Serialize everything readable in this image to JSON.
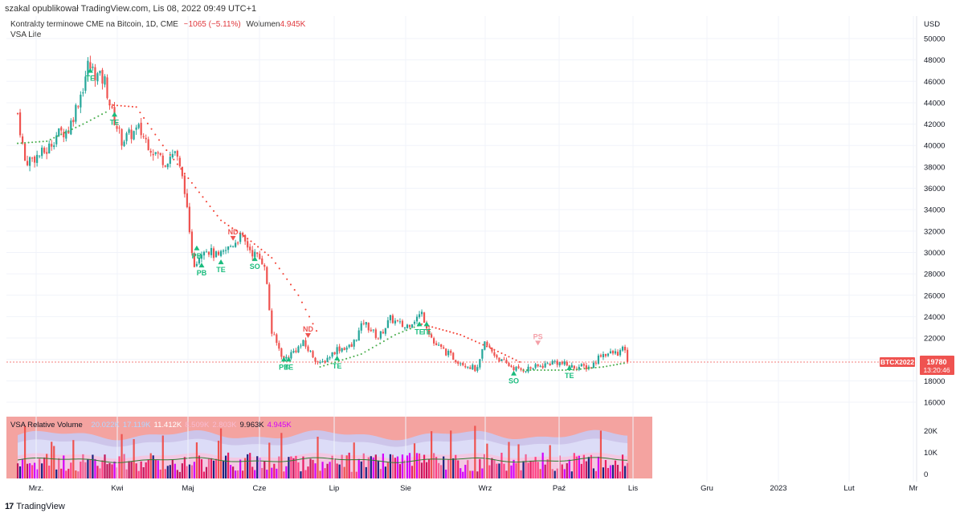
{
  "header": {
    "published": "szakal opublikował TradingView.com, Lis 08, 2022 09:49 UTC+1",
    "symbol_desc": "Kontrakty terminowe CME na Bitcoin, 1D, CME",
    "change": "−1065 (−5.11%)",
    "volume_label": "Wolumen",
    "volume_value": "4.945K",
    "indicator": "VSA Lite"
  },
  "price_axis": {
    "currency": "USD"
  },
  "price_badge": {
    "symbol": "BTCX2022",
    "price": "19780",
    "countdown": "13:20:46"
  },
  "vsa": {
    "title": "VSA Relative Volume",
    "values": [
      {
        "text": "20.022K",
        "color": "#b3d6ff"
      },
      {
        "text": "17.119K",
        "color": "#b3d6ff"
      },
      {
        "text": "11.412K",
        "color": "#ffffff"
      },
      {
        "text": "8.509K",
        "color": "#f8bbd0"
      },
      {
        "text": "2.803K",
        "color": "#f8bbd0"
      },
      {
        "text": "9.963K",
        "color": "#131722"
      },
      {
        "text": "4.945K",
        "color": "#d500f9"
      }
    ]
  },
  "footer": {
    "logo": "17",
    "brand": "TradingView"
  },
  "colors": {
    "up": "#26a69a",
    "down": "#ef5350",
    "support": "#4caf50",
    "resistance": "#f44336"
  },
  "chart_data": {
    "type": "candlestick",
    "y_ticks": [
      16000,
      18000,
      20000,
      22000,
      24000,
      26000,
      28000,
      30000,
      32000,
      34000,
      36000,
      38000,
      40000,
      42000,
      44000,
      46000,
      48000,
      50000
    ],
    "ylim": [
      15000,
      51000
    ],
    "x_labels": [
      "Mrz.",
      "Kwi",
      "Maj",
      "Cze",
      "Lip",
      "Sie",
      "Wrz",
      "Paź",
      "Lis",
      "Gru",
      "2023",
      "Lut",
      "Mr"
    ],
    "last_price": 19780,
    "close_path": [
      {
        "d": "2022-02-28",
        "v": 43000
      },
      {
        "d": "2022-03-03",
        "v": 38500
      },
      {
        "d": "2022-03-08",
        "v": 39000
      },
      {
        "d": "2022-03-12",
        "v": 39500
      },
      {
        "d": "2022-03-16",
        "v": 41000
      },
      {
        "d": "2022-03-21",
        "v": 41500
      },
      {
        "d": "2022-03-27",
        "v": 45500
      },
      {
        "d": "2022-03-29",
        "v": 47500
      },
      {
        "d": "2022-04-02",
        "v": 46500
      },
      {
        "d": "2022-04-05",
        "v": 46000
      },
      {
        "d": "2022-04-08",
        "v": 43000
      },
      {
        "d": "2022-04-12",
        "v": 40500
      },
      {
        "d": "2022-04-19",
        "v": 41500
      },
      {
        "d": "2022-04-25",
        "v": 39500
      },
      {
        "d": "2022-04-30",
        "v": 38500
      },
      {
        "d": "2022-05-04",
        "v": 39500
      },
      {
        "d": "2022-05-08",
        "v": 36000
      },
      {
        "d": "2022-05-10",
        "v": 31500
      },
      {
        "d": "2022-05-12",
        "v": 29000
      },
      {
        "d": "2022-05-16",
        "v": 30500
      },
      {
        "d": "2022-05-22",
        "v": 29500
      },
      {
        "d": "2022-05-31",
        "v": 31500
      },
      {
        "d": "2022-06-05",
        "v": 30000
      },
      {
        "d": "2022-06-10",
        "v": 29000
      },
      {
        "d": "2022-06-13",
        "v": 22500
      },
      {
        "d": "2022-06-18",
        "v": 20000
      },
      {
        "d": "2022-06-26",
        "v": 21500
      },
      {
        "d": "2022-07-03",
        "v": 19500
      },
      {
        "d": "2022-07-10",
        "v": 21000
      },
      {
        "d": "2022-07-16",
        "v": 21200
      },
      {
        "d": "2022-07-21",
        "v": 23500
      },
      {
        "d": "2022-07-27",
        "v": 22000
      },
      {
        "d": "2022-08-01",
        "v": 23800
      },
      {
        "d": "2022-08-07",
        "v": 23000
      },
      {
        "d": "2022-08-14",
        "v": 24300
      },
      {
        "d": "2022-08-19",
        "v": 21500
      },
      {
        "d": "2022-08-28",
        "v": 20000
      },
      {
        "d": "2022-09-06",
        "v": 19000
      },
      {
        "d": "2022-09-09",
        "v": 21500
      },
      {
        "d": "2022-09-13",
        "v": 20500
      },
      {
        "d": "2022-09-16",
        "v": 19800
      },
      {
        "d": "2022-09-23",
        "v": 19000
      },
      {
        "d": "2022-10-01",
        "v": 19300
      },
      {
        "d": "2022-10-08",
        "v": 19800
      },
      {
        "d": "2022-10-15",
        "v": 19300
      },
      {
        "d": "2022-10-23",
        "v": 19300
      },
      {
        "d": "2022-10-27",
        "v": 20500
      },
      {
        "d": "2022-11-03",
        "v": 20600
      },
      {
        "d": "2022-11-06",
        "v": 21000
      },
      {
        "d": "2022-11-07",
        "v": 19780
      }
    ],
    "trail_support": [
      {
        "d": "2022-02-28",
        "v": 40200
      },
      {
        "d": "2022-03-12",
        "v": 40400
      },
      {
        "d": "2022-03-27",
        "v": 42000
      },
      {
        "d": "2022-04-07",
        "v": 43300
      }
    ],
    "trail_resistance": [
      {
        "d": "2022-04-07",
        "v": 43800
      },
      {
        "d": "2022-04-18",
        "v": 43600
      },
      {
        "d": "2022-04-29",
        "v": 40000
      },
      {
        "d": "2022-05-11",
        "v": 36500
      },
      {
        "d": "2022-05-23",
        "v": 33000
      },
      {
        "d": "2022-06-03",
        "v": 31300
      },
      {
        "d": "2022-06-13",
        "v": 29500
      },
      {
        "d": "2022-06-24",
        "v": 26000
      },
      {
        "d": "2022-07-03",
        "v": 22000
      }
    ],
    "trail_support_2": [
      {
        "d": "2022-07-03",
        "v": 19300
      },
      {
        "d": "2022-07-20",
        "v": 20500
      },
      {
        "d": "2022-08-03",
        "v": 22300
      },
      {
        "d": "2022-08-14",
        "v": 23300
      }
    ],
    "trail_resistance_2": [
      {
        "d": "2022-08-14",
        "v": 23300
      },
      {
        "d": "2022-08-30",
        "v": 22300
      },
      {
        "d": "2022-09-13",
        "v": 20900
      },
      {
        "d": "2022-09-25",
        "v": 19600
      }
    ],
    "trail_support_3": [
      {
        "d": "2022-09-25",
        "v": 19000
      },
      {
        "d": "2022-10-14",
        "v": 19000
      },
      {
        "d": "2022-10-28",
        "v": 19300
      },
      {
        "d": "2022-11-07",
        "v": 19700
      }
    ],
    "signals": [
      {
        "d": "2022-03-30",
        "label": "TE",
        "dir": "up",
        "price": 46800
      },
      {
        "d": "2022-04-09",
        "label": "TE",
        "dir": "up",
        "price": 42700
      },
      {
        "d": "2022-05-13",
        "label": "PB",
        "dir": "up",
        "price": 30200
      },
      {
        "d": "2022-05-15",
        "label": "PB",
        "dir": "up",
        "price": 28600
      },
      {
        "d": "2022-05-23",
        "label": "TE",
        "dir": "up",
        "price": 28900
      },
      {
        "d": "2022-05-28",
        "label": "ND",
        "dir": "down",
        "price": 31100
      },
      {
        "d": "2022-06-06",
        "label": "SO",
        "dir": "up",
        "price": 29200
      },
      {
        "d": "2022-06-18",
        "label": "PB",
        "dir": "up",
        "price": 19800
      },
      {
        "d": "2022-06-20",
        "label": "TE",
        "dir": "up",
        "price": 19800
      },
      {
        "d": "2022-06-28",
        "label": "ND",
        "dir": "down",
        "price": 22000
      },
      {
        "d": "2022-07-10",
        "label": "TE",
        "dir": "up",
        "price": 19900
      },
      {
        "d": "2022-08-13",
        "label": "TE",
        "dir": "up",
        "price": 23100
      },
      {
        "d": "2022-08-16",
        "label": "TE",
        "dir": "up",
        "price": 23100
      },
      {
        "d": "2022-09-21",
        "label": "SO",
        "dir": "up",
        "price": 18500
      },
      {
        "d": "2022-10-01",
        "label": "PS",
        "dir": "down",
        "price": 21300
      },
      {
        "d": "2022-10-14",
        "label": "TE",
        "dir": "up",
        "price": 19000
      }
    ]
  }
}
